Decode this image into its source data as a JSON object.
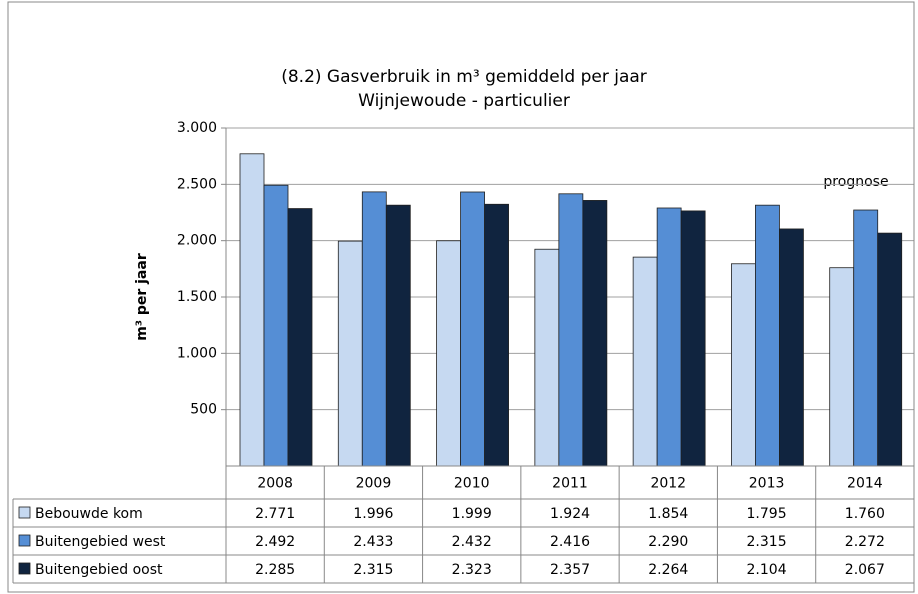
{
  "chart_data": {
    "type": "bar",
    "title": "(8.2) Gasverbruik in m³ gemiddeld per jaar",
    "subtitle": "Wijnjewoude - particulier",
    "y_label": "m³ per jaar",
    "annotation": "prognose",
    "categories": [
      "2008",
      "2009",
      "2010",
      "2011",
      "2012",
      "2013",
      "2014"
    ],
    "series": [
      {
        "name": "Bebouwde kom",
        "color": "#c6d9f1",
        "values": [
          2771,
          1996,
          1999,
          1924,
          1854,
          1795,
          1760
        ],
        "value_labels": [
          "2.771",
          "1.996",
          "1.999",
          "1.924",
          "1.854",
          "1.795",
          "1.760"
        ]
      },
      {
        "name": "Buitengebied west",
        "color": "#558ed5",
        "values": [
          2492,
          2433,
          2432,
          2416,
          2290,
          2315,
          2272
        ],
        "value_labels": [
          "2.492",
          "2.433",
          "2.432",
          "2.416",
          "2.290",
          "2.315",
          "2.272"
        ]
      },
      {
        "name": "Buitengebied oost",
        "color": "#10243f",
        "values": [
          2285,
          2315,
          2323,
          2357,
          2264,
          2104,
          2067
        ],
        "value_labels": [
          "2.285",
          "2.315",
          "2.323",
          "2.357",
          "2.264",
          "2.104",
          "2.067"
        ]
      }
    ],
    "ylim": [
      0,
      3000
    ],
    "yticks": [
      500,
      {
        "value": 1000,
        "label": "1.000"
      },
      {
        "value": 1500,
        "label": "1.500"
      },
      {
        "value": 2000,
        "label": "2.000"
      },
      {
        "value": 2500,
        "label": "2.500"
      },
      {
        "value": 3000,
        "label": "3.000"
      }
    ],
    "grid": true
  }
}
